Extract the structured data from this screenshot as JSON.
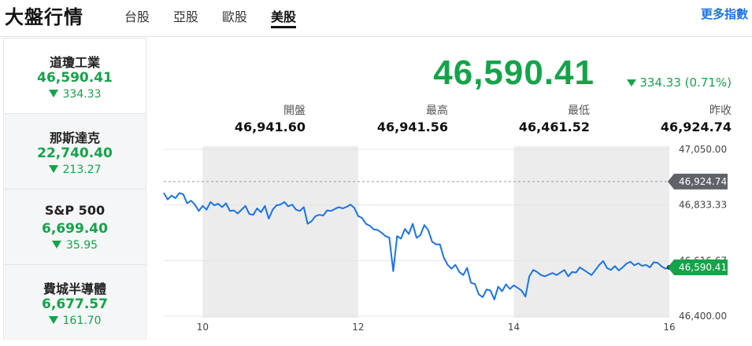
{
  "header": {
    "title": "大盤行情",
    "tabs": [
      {
        "label": "台股"
      },
      {
        "label": "亞股"
      },
      {
        "label": "歐股"
      },
      {
        "label": "美股"
      }
    ],
    "active_tab": "美股",
    "more_link": "更多指數"
  },
  "sidebar": {
    "items": [
      {
        "name": "道瓊工業",
        "price": "46,590.41",
        "change": "334.33",
        "direction": "down"
      },
      {
        "name": "那斯達克",
        "price": "22,740.40",
        "change": "213.27",
        "direction": "down"
      },
      {
        "name": "S&P 500",
        "price": "6,699.40",
        "change": "35.95",
        "direction": "down"
      },
      {
        "name": "費城半導體",
        "price": "6,677.57",
        "change": "161.70",
        "direction": "down"
      }
    ]
  },
  "quote": {
    "price": "46,590.41",
    "change": "334.33 (0.71%)",
    "direction": "down",
    "stats": [
      {
        "label": "開盤",
        "value": "46,941.60"
      },
      {
        "label": "最高",
        "value": "46,941.56"
      },
      {
        "label": "最低",
        "value": "46,461.52"
      },
      {
        "label": "昨收",
        "value": "46,924.74"
      }
    ]
  },
  "colors": {
    "down": "#15a34a",
    "line": "#1a73e8",
    "prev_close_tag": "#5f6368",
    "session_shade": "#ececec"
  },
  "chart_data": {
    "type": "line",
    "x_ticks": [
      "10",
      "12",
      "14",
      "16"
    ],
    "y_ticks": [
      "47,050.00",
      "46,833.33",
      "46,616.67",
      "46,400.00"
    ],
    "ylim": [
      46400,
      47050
    ],
    "xlim": [
      9.5,
      16
    ],
    "grid": true,
    "reference_lines": [
      {
        "label": "46,924.74",
        "value": 46924.74,
        "style": "dashed"
      }
    ],
    "last_value_tag": "46,590.41",
    "shaded_hours": [
      [
        10,
        12
      ],
      [
        14,
        16
      ]
    ],
    "series": [
      {
        "x": [
          9.5,
          9.55,
          9.6,
          9.65,
          9.7,
          9.75,
          9.8,
          9.85,
          9.9,
          9.95,
          10.0,
          10.05,
          10.1,
          10.15,
          10.2,
          10.25,
          10.3,
          10.35,
          10.4,
          10.45,
          10.5,
          10.55,
          10.6,
          10.65,
          10.7,
          10.75,
          10.8,
          10.85,
          10.9,
          10.95,
          11.0,
          11.05,
          11.1,
          11.15,
          11.2,
          11.25,
          11.3,
          11.35,
          11.4,
          11.45,
          11.5,
          11.55,
          11.6,
          11.65,
          11.7,
          11.75,
          11.8,
          11.85,
          11.9,
          11.95,
          12.0,
          12.05,
          12.1,
          12.15,
          12.2,
          12.25,
          12.3,
          12.35,
          12.4,
          12.45,
          12.5,
          12.55,
          12.6,
          12.65,
          12.7,
          12.75,
          12.8,
          12.85,
          12.9,
          12.95,
          13.0,
          13.05,
          13.1,
          13.15,
          13.2,
          13.25,
          13.3,
          13.35,
          13.4,
          13.45,
          13.5,
          13.55,
          13.6,
          13.65,
          13.7,
          13.75,
          13.8,
          13.85,
          13.9,
          13.95,
          14.0,
          14.05,
          14.1,
          14.15,
          14.2,
          14.25,
          14.3,
          14.35,
          14.4,
          14.45,
          14.5,
          14.55,
          14.6,
          14.65,
          14.7,
          14.75,
          14.8,
          14.85,
          14.9,
          14.95,
          15.0,
          15.05,
          15.1,
          15.15,
          15.2,
          15.25,
          15.3,
          15.35,
          15.4,
          15.45,
          15.5,
          15.55,
          15.6,
          15.65,
          15.7,
          15.75,
          15.8,
          15.85,
          15.9,
          15.95,
          16.0
        ],
        "values": [
          46880,
          46855,
          46870,
          46860,
          46880,
          46875,
          46840,
          46850,
          46835,
          46810,
          46830,
          46815,
          46845,
          46832,
          46838,
          46825,
          46840,
          46810,
          46812,
          46800,
          46815,
          46830,
          46798,
          46795,
          46820,
          46805,
          46830,
          46780,
          46815,
          46832,
          46835,
          46845,
          46828,
          46835,
          46815,
          46810,
          46825,
          46760,
          46770,
          46790,
          46795,
          46792,
          46812,
          46810,
          46818,
          46825,
          46820,
          46826,
          46835,
          46822,
          46790,
          46782,
          46760,
          46752,
          46738,
          46736,
          46725,
          46712,
          46706,
          46575,
          46712,
          46702,
          46740,
          46720,
          46760,
          46705,
          46716,
          46755,
          46735,
          46690,
          46680,
          46680,
          46628,
          46600,
          46585,
          46600,
          46572,
          46560,
          46588,
          46530,
          46525,
          46485,
          46474,
          46504,
          46500,
          46465,
          46515,
          46497,
          46524,
          46506,
          46520,
          46510,
          46500,
          46476,
          46555,
          46580,
          46572,
          46560,
          46555,
          46562,
          46568,
          46560,
          46570,
          46580,
          46555,
          46572,
          46570,
          46590,
          46580,
          46570,
          46560,
          46580,
          46600,
          46615,
          46587,
          46580,
          46595,
          46578,
          46590,
          46605,
          46612,
          46598,
          46606,
          46596,
          46600,
          46590,
          46610,
          46608,
          46594,
          46585,
          46590
        ]
      }
    ]
  }
}
